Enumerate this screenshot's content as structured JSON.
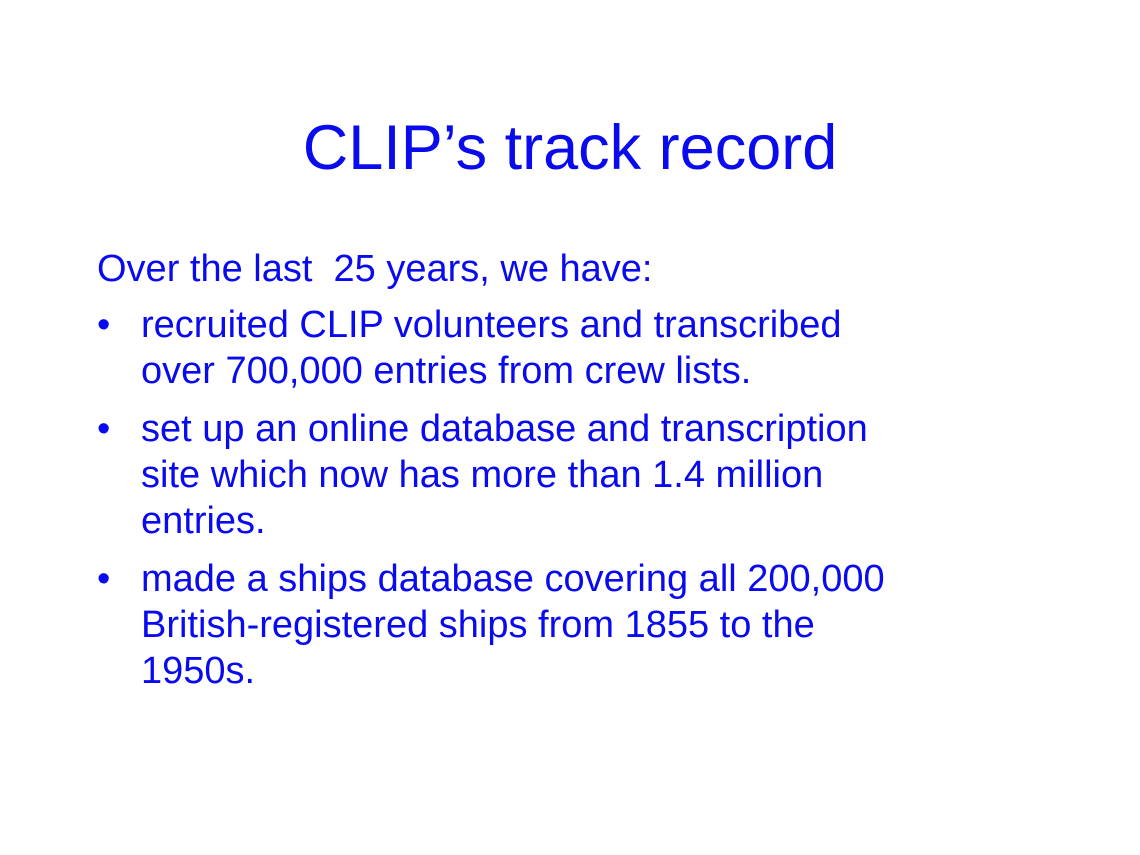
{
  "slide": {
    "title": "CLIP’s track record",
    "intro": "Over the last  25 years, we have:",
    "bullet_symbol": "•",
    "bullets": [
      {
        "lines": [
          "recruited CLIP volunteers and transcribed",
          "over 700,000 entries from crew lists."
        ]
      },
      {
        "lines": [
          "set up an online database and transcription",
          "site which now has more than 1.4 million",
          "entries."
        ]
      },
      {
        "lines": [
          "made a ships database covering all 200,000",
          "British-registered ships from 1855 to the",
          "1950s."
        ]
      }
    ],
    "colors": {
      "text": "#0a0aee",
      "background": "#ffffff"
    }
  }
}
